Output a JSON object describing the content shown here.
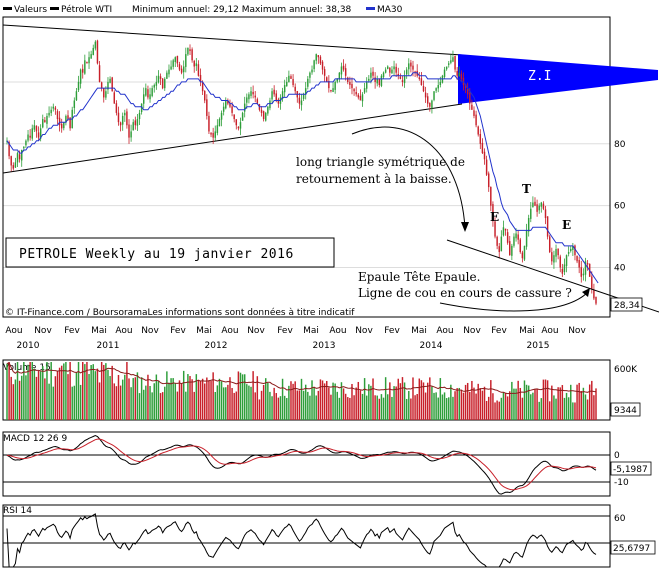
{
  "legend": {
    "main": {
      "series1": "Valeurs",
      "series2": "Pétrole WTI",
      "minmax": "Minimum annuel: 29,12 Maximum annuel: 38,38",
      "series3": "MA30"
    },
    "volume": "Volume 15",
    "macd": "MACD 12 26 9",
    "rsi": "RSI 14"
  },
  "source_note": "© IT-Finance.com / BoursoramaLes informations sont données à titre indicatif",
  "annotations": {
    "title_box": "PETROLE Weekly au 19 janvier 2016",
    "zone": "Z.I",
    "triangle_line1": "long triangle symétrique de",
    "triangle_line2": "retournement à la baisse.",
    "hs_line1": "Epaule Tête Epaule.",
    "hs_line2": "Ligne de cou en cours de cassure ?",
    "t_label": "T",
    "e_label_left": "E",
    "e_label_right": "E"
  },
  "colors": {
    "up": "#2e9e3a",
    "down": "#c8202a",
    "ma": "#2233cc",
    "zone": "#0000ff",
    "grid": "#dddddd"
  },
  "chart_data": [
    {
      "type": "line",
      "name": "price",
      "x_tick_labels": [
        "Aou",
        "Nov",
        "Fev",
        "Mai",
        "Aou",
        "Nov",
        "Fev",
        "Mai",
        "Aou",
        "Nov",
        "Fev",
        "Mai",
        "Aou",
        "Nov",
        "Fev",
        "Mai",
        "Aou",
        "Nov",
        "Fev",
        "Mai",
        "Aou",
        "Nov"
      ],
      "year_labels": [
        "2010",
        "2011",
        "2012",
        "2013",
        "2014",
        "2015"
      ],
      "y_ticks": [
        40,
        60,
        80,
        100
      ],
      "y_tick_labels": [
        "40",
        "60",
        "80",
        ""
      ],
      "ylim": [
        24,
        121
      ],
      "last_value_label": "28,34",
      "series": [
        {
          "name": "Pétrole WTI",
          "kind": "candlestick"
        },
        {
          "name": "MA30",
          "kind": "line"
        }
      ],
      "weekly_close": [
        81,
        76,
        73,
        72,
        74,
        77,
        75,
        78,
        79,
        81,
        83,
        82,
        85,
        86,
        84,
        82,
        85,
        88,
        87,
        89,
        90,
        91,
        92,
        91,
        88,
        86,
        85,
        87,
        89,
        88,
        85,
        91,
        94,
        97,
        100,
        104,
        103,
        107,
        106,
        108,
        109,
        111,
        113,
        106,
        100,
        98,
        95,
        97,
        100,
        101,
        97,
        93,
        90,
        87,
        86,
        89,
        90,
        86,
        82,
        84,
        87,
        86,
        88,
        90,
        93,
        96,
        98,
        95,
        96,
        98,
        99,
        100,
        102,
        101,
        98,
        101,
        103,
        104,
        105,
        107,
        108,
        106,
        104,
        103,
        105,
        109,
        111,
        110,
        107,
        105,
        106,
        102,
        100,
        97,
        94,
        89,
        84,
        83,
        82,
        84,
        86,
        88,
        90,
        92,
        94,
        93,
        92,
        90,
        88,
        86,
        85,
        87,
        90,
        93,
        95,
        96,
        97,
        96,
        95,
        93,
        91,
        90,
        88,
        90,
        92,
        94,
        97,
        96,
        94,
        93,
        95,
        97,
        99,
        100,
        102,
        101,
        99,
        97,
        95,
        93,
        94,
        96,
        98,
        101,
        103,
        104,
        107,
        109,
        108,
        106,
        104,
        102,
        100,
        98,
        97,
        98,
        100,
        101,
        103,
        105,
        104,
        102,
        100,
        99,
        98,
        97,
        96,
        95,
        94,
        96,
        98,
        100,
        101,
        103,
        102,
        100,
        101,
        99,
        102,
        103,
        104,
        105,
        103,
        104,
        105,
        103,
        102,
        101,
        100,
        102,
        104,
        106,
        105,
        104,
        103,
        102,
        101,
        99,
        97,
        95,
        93,
        92,
        94,
        97,
        98,
        99,
        100,
        102,
        104,
        105,
        106,
        107,
        108,
        104,
        102,
        103,
        101,
        99,
        98,
        96,
        93,
        91,
        89,
        86,
        83,
        80,
        77,
        75,
        70,
        66,
        60,
        55,
        50,
        47,
        45,
        50,
        53,
        52,
        48,
        44,
        47,
        50,
        51,
        49,
        45,
        43,
        47,
        52,
        56,
        59,
        61,
        60,
        58,
        60,
        61,
        59,
        56,
        50,
        45,
        42,
        44,
        46,
        44,
        40,
        38,
        41,
        44,
        45,
        46,
        47,
        44,
        42,
        40,
        37,
        38,
        42,
        41,
        37,
        33,
        30,
        28.34
      ],
      "ma30": [
        81,
        80,
        79,
        78,
        78,
        78,
        77,
        77,
        78,
        78,
        79,
        79,
        80,
        80,
        81,
        81,
        82,
        83,
        83,
        84,
        85,
        85,
        86,
        86,
        86,
        87,
        87,
        87,
        87,
        88,
        88,
        88,
        89,
        89,
        90,
        91,
        91,
        92,
        93,
        94,
        95,
        96,
        97,
        98,
        98,
        98,
        98,
        98,
        98,
        98,
        98,
        98,
        97,
        97,
        96,
        96,
        96,
        95,
        94,
        93,
        93,
        92,
        92,
        92,
        92,
        91,
        91,
        91,
        92,
        92,
        93,
        93,
        94,
        94,
        95,
        95,
        96,
        96,
        97,
        97,
        98,
        99,
        99,
        100,
        100,
        100,
        101,
        101,
        101,
        101,
        101,
        101,
        100,
        100,
        99,
        98,
        97,
        96,
        96,
        95,
        95,
        95,
        94,
        94,
        94,
        94,
        93,
        93,
        92,
        92,
        91,
        91,
        91,
        91,
        92,
        92,
        92,
        93,
        93,
        93,
        92,
        92,
        92,
        92,
        93,
        93,
        93,
        94,
        94,
        94,
        94,
        95,
        95,
        95,
        96,
        96,
        96,
        96,
        96,
        96,
        96,
        96,
        96,
        97,
        97,
        98,
        98,
        99,
        99,
        100,
        100,
        100,
        100,
        100,
        100,
        100,
        101,
        101,
        101,
        101,
        101,
        101,
        101,
        101,
        101,
        101,
        100,
        100,
        100,
        100,
        100,
        100,
        100,
        100,
        101,
        101,
        101,
        101,
        101,
        101,
        101,
        101,
        101,
        102,
        102,
        102,
        102,
        102,
        102,
        102,
        102,
        102,
        102,
        103,
        103,
        103,
        102,
        102,
        102,
        102,
        101,
        101,
        101,
        101,
        101,
        101,
        101,
        101,
        101,
        101,
        101,
        101,
        102,
        102,
        101,
        101,
        100,
        100,
        99,
        98,
        97,
        96,
        95,
        93,
        91,
        89,
        86,
        83,
        80,
        77,
        74,
        71,
        69,
        66,
        64,
        61,
        59,
        58,
        57,
        55,
        54,
        53,
        52,
        52,
        52,
        52,
        52,
        52,
        52,
        52,
        53,
        53,
        53,
        53,
        53,
        53,
        53,
        52,
        51,
        50,
        49,
        48,
        48,
        48,
        48,
        47,
        47,
        47,
        47,
        47,
        46,
        45,
        44,
        43,
        42,
        41,
        40,
        39,
        38,
        37,
        36,
        35
      ]
    },
    {
      "type": "bar",
      "name": "volume",
      "y_tick_labels": [
        "600K"
      ],
      "last_value_label": "9344"
    },
    {
      "type": "line",
      "name": "macd",
      "y_tick_labels": [
        "0",
        "-10"
      ],
      "ylim": [
        -14,
        8
      ],
      "last_value_label": "-5,1987"
    },
    {
      "type": "line",
      "name": "rsi",
      "y_tick_labels": [
        "60"
      ],
      "ylim": [
        14,
        88
      ],
      "last_value_label": "25,6797"
    }
  ]
}
